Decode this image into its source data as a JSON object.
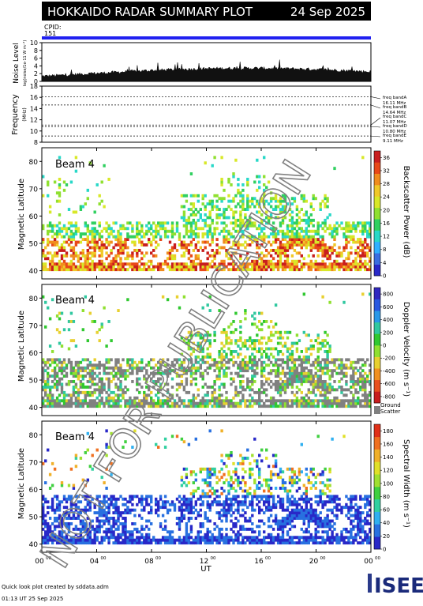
{
  "header": {
    "title": "HOKKAIDO RADAR SUMMARY PLOT",
    "date": "24 Sep 2025",
    "cpid_label": "CPID:",
    "cpid_value": "151",
    "bg_color": "#000000",
    "fg_color": "#ffffff",
    "cpid_bar_color": "#2020f0"
  },
  "noise_panel": {
    "ylabel": "Noise Level",
    "ylabel_sub": "log(noise/1e-11 W m⁻²)",
    "yticks": [
      "0",
      "2",
      "4",
      "6",
      "8",
      "10"
    ],
    "ylim": [
      0,
      10
    ]
  },
  "frequency_panel": {
    "ylabel": "Frequency",
    "unit": "(MHz)",
    "yticks": [
      "8",
      "10",
      "12",
      "14",
      "16",
      "18"
    ],
    "ylim": [
      8,
      18
    ],
    "bands": [
      {
        "name": "freq bandA",
        "freq": "16.11 MHz",
        "value": 16.11
      },
      {
        "name": "freq bandB",
        "freq": "14.64 MHz",
        "value": 14.64
      },
      {
        "name": "freq bandC",
        "freq": "11.07 MHz",
        "value": 11.07
      },
      {
        "name": "freq bandD",
        "freq": "10.80 MHz",
        "value": 10.8
      },
      {
        "name": "freq bandE",
        "freq": "9.11 MHz",
        "value": 9.11
      }
    ]
  },
  "panels": [
    {
      "beam_label": "Beam  4",
      "ylabel": "Magnetic Latitude",
      "yticks": [
        "40",
        "50",
        "60",
        "70",
        "80"
      ],
      "ylim": [
        37,
        85
      ],
      "colorbar_label": "Backscatter Power (dB)",
      "colorbar_ticks": [
        "0",
        "4",
        "8",
        "12",
        "16",
        "20",
        "24",
        "28",
        "32",
        "36"
      ],
      "colorbar_range": [
        0,
        38
      ],
      "colormap": "power",
      "extra_label": ""
    },
    {
      "beam_label": "Beam  4",
      "ylabel": "Magnetic Latitude",
      "yticks": [
        "40",
        "50",
        "60",
        "70",
        "80"
      ],
      "ylim": [
        37,
        85
      ],
      "colorbar_label": "Doppler Velocity (m s⁻¹)",
      "colorbar_ticks": [
        "-800",
        "-600",
        "-400",
        "-200",
        "0",
        "200",
        "400",
        "600",
        "800"
      ],
      "colorbar_range": [
        -900,
        900
      ],
      "colormap": "velocity",
      "extra_label": "Ground\nScatter"
    },
    {
      "beam_label": "Beam  4",
      "ylabel": "Magnetic Latitude",
      "yticks": [
        "40",
        "50",
        "60",
        "70",
        "80"
      ],
      "ylim": [
        37,
        85
      ],
      "colorbar_label": "Spectral Width (m s⁻¹)",
      "colorbar_ticks": [
        "0",
        "20",
        "40",
        "60",
        "80",
        "100",
        "120",
        "140",
        "160",
        "180"
      ],
      "colorbar_range": [
        0,
        190
      ],
      "colormap": "width",
      "extra_label": ""
    }
  ],
  "xaxis": {
    "label": "UT",
    "ticks": [
      "00",
      "04",
      "08",
      "12",
      "16",
      "20",
      "00"
    ],
    "tick_hours": [
      0,
      4,
      8,
      12,
      16,
      20,
      24
    ],
    "superscript": "00"
  },
  "footer": {
    "line1": "Quick look plot created by sddata.adm",
    "line2": "01:13 UT 25 Sep 2025",
    "logo_text": "ISEE"
  },
  "watermark": {
    "text": "NOT FOR PUBLICATION",
    "color": "#808080"
  },
  "chart_data": {
    "type": "heatmap",
    "title": "HOKKAIDO RADAR SUMMARY PLOT",
    "date": "24 Sep 2025",
    "x_range_hours": [
      0,
      24
    ],
    "panels": [
      "Backscatter Power (dB)",
      "Doppler Velocity (m s⁻¹)",
      "Spectral Width (m s⁻¹)"
    ],
    "ylim": [
      37,
      85
    ],
    "ground_scatter_color": "#808080"
  }
}
